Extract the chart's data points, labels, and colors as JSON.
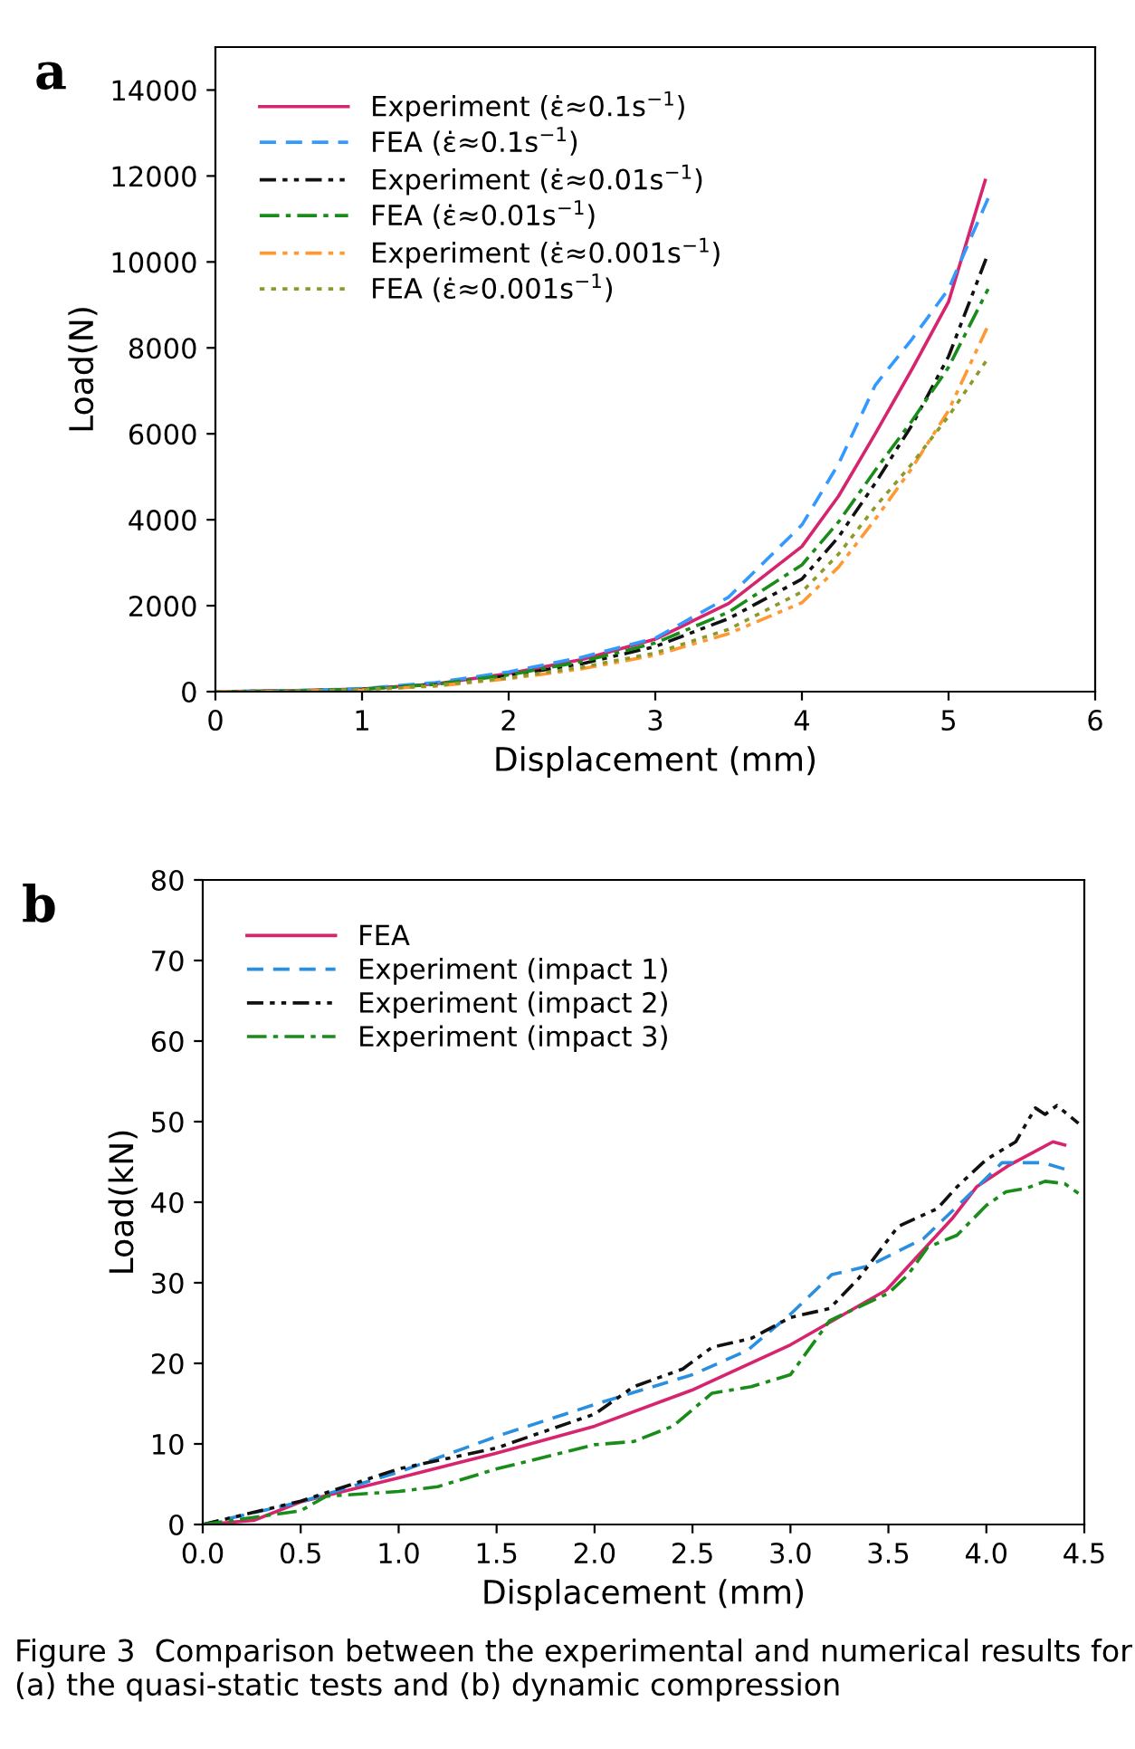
{
  "chart_data": [
    {
      "type": "line",
      "title": "a",
      "xlabel": "Displacement (mm)",
      "ylabel": "Load(N)",
      "xlim": [
        0,
        6
      ],
      "ylim": [
        0,
        15000
      ],
      "xticks": [
        0,
        1,
        2,
        3,
        4,
        5,
        6
      ],
      "yticks": [
        0,
        2000,
        4000,
        6000,
        8000,
        10000,
        12000,
        14000
      ],
      "grid": false,
      "legend": "top left",
      "marker": "none",
      "series": [
        {
          "name": "Experiment (ε̇≈0.1s$^{−1}$)",
          "color": "#d6246e",
          "line_style": "solid",
          "x": [
            0,
            0.5,
            1,
            1.5,
            2,
            2.5,
            3,
            3.5,
            4,
            4.25,
            4.5,
            4.75,
            5,
            5.25
          ],
          "values": [
            0,
            20,
            60,
            180,
            420,
            750,
            1220,
            2050,
            3380,
            4550,
            6000,
            7500,
            9070,
            11900
          ]
        },
        {
          "name": "FEA (ε̇≈0.1s$^{−1}$)",
          "color": "#3399ff",
          "line_style": "dashed",
          "x": [
            0,
            0.5,
            1,
            1.5,
            2,
            2.5,
            3,
            3.5,
            4,
            4.25,
            4.5,
            4.75,
            5,
            5.27
          ],
          "values": [
            0,
            20,
            70,
            210,
            460,
            800,
            1245,
            2200,
            3880,
            5300,
            7130,
            8200,
            9370,
            11480
          ]
        },
        {
          "name": "Experiment (ε̇≈0.01s$^{−1}$)",
          "color": "#111111",
          "line_style": "dashdotdot",
          "x": [
            0,
            0.5,
            1,
            1.5,
            2,
            2.5,
            3,
            3.5,
            4,
            4.25,
            4.5,
            4.75,
            5,
            5.27
          ],
          "values": [
            0,
            15,
            50,
            160,
            370,
            650,
            1050,
            1700,
            2620,
            3600,
            4850,
            6200,
            7800,
            10200
          ]
        },
        {
          "name": "FEA (ε̇≈0.01s$^{−1}$)",
          "color": "#1a8c1a",
          "line_style": "dashdot",
          "x": [
            0,
            0.5,
            1,
            1.5,
            2,
            2.5,
            3,
            3.5,
            4,
            4.25,
            4.5,
            4.75,
            5,
            5.27
          ],
          "values": [
            0,
            15,
            55,
            170,
            390,
            700,
            1130,
            1850,
            2950,
            3950,
            5150,
            6300,
            7550,
            9370
          ]
        },
        {
          "name": "Experiment (ε̇≈0.001s$^{−1}$)",
          "color": "#ff9933",
          "line_style": "dashdotdot",
          "x": [
            0,
            0.5,
            1,
            1.5,
            2,
            2.5,
            3,
            3.5,
            4,
            4.25,
            4.5,
            4.75,
            5,
            5.27
          ],
          "values": [
            0,
            10,
            40,
            130,
            300,
            530,
            850,
            1350,
            2070,
            2900,
            4010,
            5200,
            6540,
            8520
          ]
        },
        {
          "name": "FEA (ε̇≈0.001s$^{−1}$)",
          "color": "#8c9a2a",
          "line_style": "dotted",
          "x": [
            0,
            0.5,
            1,
            1.5,
            2,
            2.5,
            3,
            3.5,
            4,
            4.25,
            4.5,
            4.75,
            5,
            5.27
          ],
          "values": [
            0,
            12,
            45,
            140,
            320,
            570,
            900,
            1450,
            2320,
            3200,
            4300,
            5300,
            6410,
            7760
          ]
        }
      ]
    },
    {
      "type": "line",
      "title": "b",
      "xlabel": "Displacement (mm)",
      "ylabel": "Load(kN)",
      "xlim": [
        0,
        4.5
      ],
      "ylim": [
        0,
        80
      ],
      "xticks": [
        {
          "value": 0,
          "label": "0.0"
        },
        0.5,
        {
          "value": 1,
          "label": "1.0"
        },
        1.5,
        {
          "value": 2,
          "label": "2.0"
        },
        2.5,
        {
          "value": 3,
          "label": "3.0"
        },
        3.5,
        {
          "value": 4,
          "label": "4.0"
        },
        4.5
      ],
      "yticks": [
        0,
        10,
        20,
        30,
        40,
        50,
        60,
        70,
        80
      ],
      "grid": false,
      "legend": "top left",
      "marker": "none",
      "annotations": [
        "Figure 3  Comparison between the experimental and numerical results for (a) the quasi-static tests and (b) dynamic compression"
      ],
      "series": [
        {
          "name": "FEA",
          "color": "#d6246e",
          "line_style": "solid",
          "x": [
            0,
            0.26,
            0.5,
            1.0,
            1.49,
            2.0,
            2.5,
            3.0,
            3.49,
            3.83,
            3.95,
            4.11,
            4.34,
            4.4
          ],
          "values": [
            0,
            0.5,
            2.8,
            5.8,
            8.8,
            12.2,
            16.7,
            22.3,
            29.1,
            38.1,
            41.9,
            44.5,
            47.5,
            47.1
          ]
        },
        {
          "name": "Experiment (impact 1)",
          "color": "#2a8fdf",
          "line_style": "dashed",
          "x": [
            0,
            0.5,
            1.0,
            1.52,
            2.04,
            2.5,
            2.78,
            3.0,
            3.21,
            3.4,
            3.68,
            3.89,
            4.08,
            4.29,
            4.4
          ],
          "values": [
            0,
            2.8,
            6.5,
            11.1,
            15.2,
            18.6,
            21.6,
            26.1,
            31.0,
            32.1,
            35.5,
            40.4,
            44.9,
            44.9,
            44.1
          ]
        },
        {
          "name": "Experiment (impact 2)",
          "color": "#111111",
          "line_style": "dashdotdot",
          "x": [
            0,
            0.5,
            1.0,
            1.5,
            2.0,
            2.2,
            2.45,
            2.6,
            2.8,
            3.0,
            3.2,
            3.35,
            3.55,
            3.75,
            3.85,
            4.0,
            4.15,
            4.25,
            4.3,
            4.36,
            4.47
          ],
          "values": [
            0,
            2.9,
            6.9,
            9.5,
            13.7,
            17.1,
            19.3,
            22.0,
            23.1,
            25.7,
            26.8,
            30.6,
            37.0,
            39.2,
            41.9,
            45.3,
            47.5,
            51.7,
            50.9,
            52.0,
            49.8
          ]
        },
        {
          "name": "Experiment (impact 3)",
          "color": "#1a8c1a",
          "line_style": "dashdot",
          "x": [
            0,
            0.5,
            0.63,
            1.0,
            1.2,
            1.5,
            2.0,
            2.2,
            2.4,
            2.6,
            2.8,
            3.0,
            3.2,
            3.5,
            3.6,
            3.7,
            3.85,
            4.0,
            4.1,
            4.2,
            4.3,
            4.4,
            4.47
          ],
          "values": [
            0,
            1.7,
            3.5,
            4.1,
            4.7,
            6.9,
            9.9,
            10.3,
            12.2,
            16.3,
            17.1,
            18.6,
            25.3,
            28.7,
            31.0,
            34.4,
            35.9,
            39.6,
            41.3,
            41.7,
            42.6,
            42.3,
            41.1
          ]
        }
      ]
    }
  ]
}
